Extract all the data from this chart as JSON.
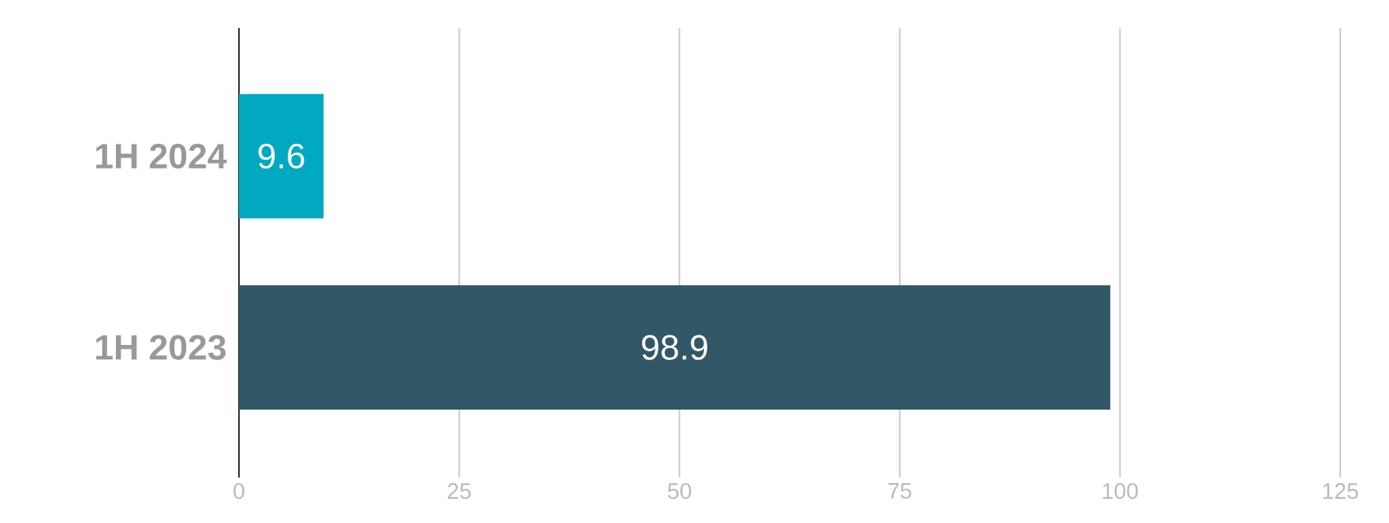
{
  "chart_data": {
    "type": "bar",
    "orientation": "horizontal",
    "categories": [
      "1H 2024",
      "1H 2023"
    ],
    "values": [
      9.6,
      98.9
    ],
    "colors": [
      "#00a8c0",
      "#325766"
    ],
    "xlim": [
      0,
      125
    ],
    "xticks": [
      0,
      25,
      50,
      75,
      100,
      125
    ],
    "grid": "x",
    "data_labels": true
  }
}
